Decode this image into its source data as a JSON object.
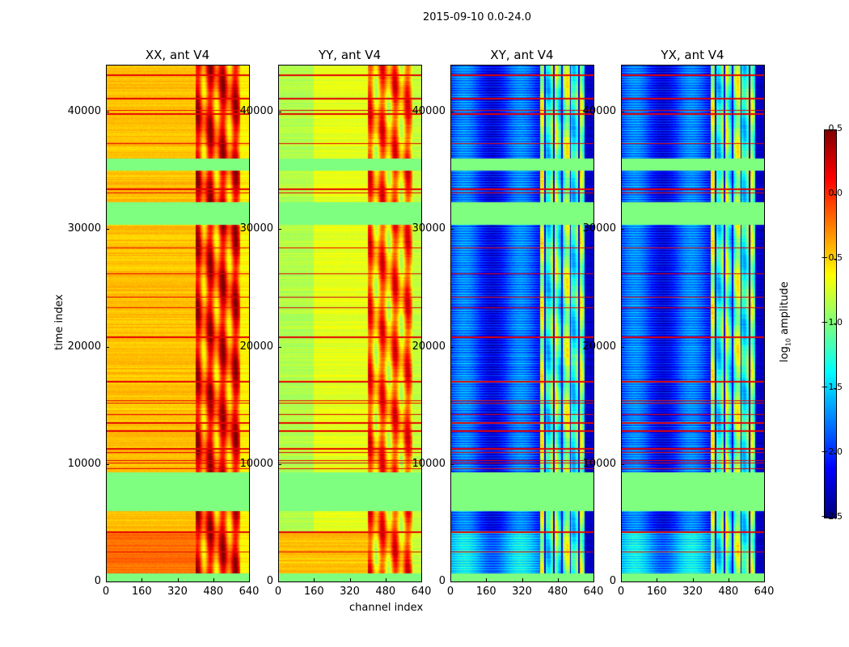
{
  "chart_data": {
    "type": "heatmap",
    "title": "2015-09-10 0.0-24.0",
    "xlabel": "channel index",
    "ylabel": "time index",
    "xlim": [
      0,
      640
    ],
    "ylim": [
      0,
      44000
    ],
    "xticks": [
      "0",
      "160",
      "320",
      "480",
      "640"
    ],
    "yticks": [
      "0",
      "10000",
      "20000",
      "30000",
      "40000"
    ],
    "colorbar": {
      "label": "log10 amplitude",
      "label_main": "log",
      "label_sub": "10",
      "label_rest": " amplitude",
      "range": [
        -2.5,
        0.5
      ],
      "ticks": [
        "0.5",
        "0.0",
        "−0.5",
        "−1.0",
        "−1.5",
        "−2.0",
        "−2.5"
      ],
      "colormap": "jet"
    },
    "flagged_time_ranges": [
      [
        0,
        700
      ],
      [
        6000,
        9300
      ],
      [
        30400,
        32300
      ],
      [
        35000,
        36000
      ]
    ],
    "rfi_time_rows": [
      2500,
      4200,
      9600,
      10100,
      10300,
      11000,
      11300,
      12800,
      13500,
      14200,
      15200,
      15400,
      17000,
      20800,
      23300,
      24200,
      26200,
      28400,
      33100,
      33400,
      37300,
      39800,
      40100,
      41100,
      43100
    ],
    "panels": [
      {
        "title": "XX, ant V4",
        "profile": [
          [
            0,
            400,
            -0.45
          ],
          [
            400,
            600,
            -0.05
          ],
          [
            600,
            640,
            -0.6
          ]
        ],
        "low_band_value": -0.2
      },
      {
        "title": "YY, ant V4",
        "profile": [
          [
            0,
            160,
            -0.85
          ],
          [
            160,
            400,
            -0.7
          ],
          [
            400,
            600,
            -0.3
          ],
          [
            600,
            640,
            -0.8
          ]
        ],
        "low_band_value": -0.45
      },
      {
        "title": "XY, ant V4",
        "profile": [
          [
            0,
            400,
            -2.05
          ],
          [
            400,
            600,
            -1.1
          ],
          [
            600,
            640,
            -2.3
          ]
        ],
        "low_band_value": -1.7
      },
      {
        "title": "YX, ant V4",
        "profile": [
          [
            0,
            400,
            -2.05
          ],
          [
            400,
            600,
            -1.1
          ],
          [
            600,
            640,
            -2.3
          ]
        ],
        "low_band_value": -1.7
      }
    ]
  }
}
